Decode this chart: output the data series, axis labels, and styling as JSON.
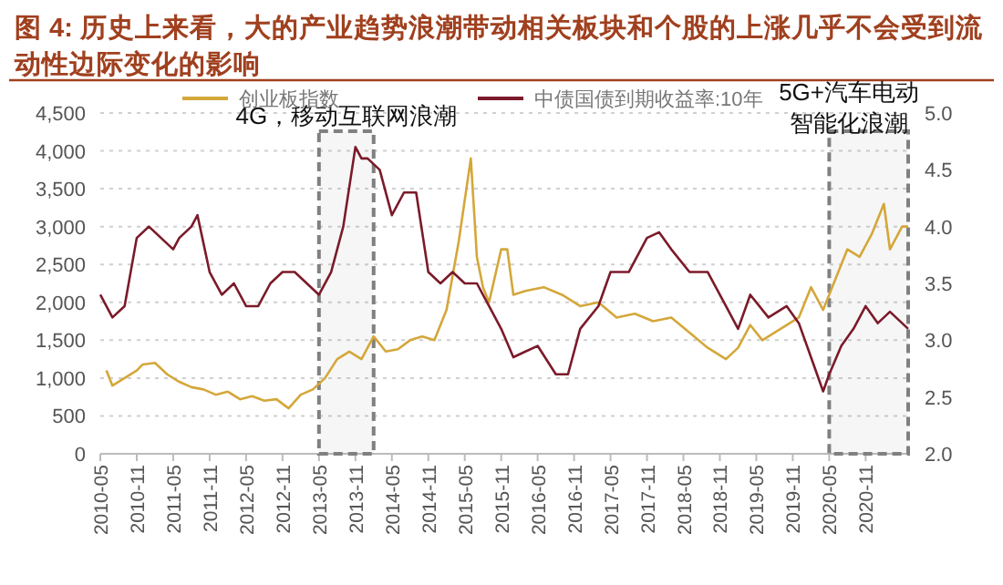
{
  "chart_data": {
    "type": "line",
    "title": "图 4: 历史上来看，大的产业趋势浪潮带动相关板块和个股的上涨几乎不会受到流动性边际变化的影响",
    "xlim": [
      "2010-05",
      "2021-06"
    ],
    "xticks": [
      "2010-05",
      "2010-11",
      "2011-05",
      "2011-11",
      "2012-05",
      "2012-11",
      "2013-05",
      "2013-11",
      "2014-05",
      "2014-11",
      "2015-05",
      "2015-11",
      "2016-05",
      "2016-11",
      "2017-05",
      "2017-11",
      "2018-05",
      "2018-11",
      "2019-05",
      "2019-11",
      "2020-05",
      "2020-11"
    ],
    "ylim": [
      0,
      4500
    ],
    "yticks": [
      {
        "value": 0,
        "label": "0"
      },
      {
        "value": 500,
        "label": "500"
      },
      {
        "value": 1000,
        "label": "1,000"
      },
      {
        "value": 1500,
        "label": "1,500"
      },
      {
        "value": 2000,
        "label": "2,000"
      },
      {
        "value": 2500,
        "label": "2,500"
      },
      {
        "value": 3000,
        "label": "3,000"
      },
      {
        "value": 3500,
        "label": "3,500"
      },
      {
        "value": 4000,
        "label": "4,000"
      },
      {
        "value": 4500,
        "label": "4,500"
      }
    ],
    "y2lim": [
      2,
      5
    ],
    "y2ticks": [
      {
        "value": 2,
        "label": "2.0"
      },
      {
        "value": 2.5,
        "label": "2.5"
      },
      {
        "value": 3,
        "label": "3.0"
      },
      {
        "value": 3.5,
        "label": "3.5"
      },
      {
        "value": 4,
        "label": "4.0"
      },
      {
        "value": 4.5,
        "label": "4.5"
      },
      {
        "value": 5,
        "label": "5.0"
      }
    ],
    "grid": "y",
    "legend": "top",
    "marker": "none",
    "line_style": "solid",
    "series": [
      {
        "name": "创业板指数",
        "color": "#d4a73a",
        "x": [
          "2010-06",
          "2010-07",
          "2010-09",
          "2010-11",
          "2010-12",
          "2011-02",
          "2011-04",
          "2011-06",
          "2011-08",
          "2011-10",
          "2011-12",
          "2012-02",
          "2012-04",
          "2012-06",
          "2012-08",
          "2012-10",
          "2012-12",
          "2013-02",
          "2013-04",
          "2013-06",
          "2013-08",
          "2013-10",
          "2013-12",
          "2014-02",
          "2014-04",
          "2014-06",
          "2014-08",
          "2014-10",
          "2014-12",
          "2015-02",
          "2015-04",
          "2015-06",
          "2015-07",
          "2015-08",
          "2015-09",
          "2015-11",
          "2015-12",
          "2016-01",
          "2016-03",
          "2016-06",
          "2016-09",
          "2016-12",
          "2017-03",
          "2017-06",
          "2017-09",
          "2017-12",
          "2018-03",
          "2018-06",
          "2018-09",
          "2018-12",
          "2019-02",
          "2019-04",
          "2019-06",
          "2019-09",
          "2019-12",
          "2020-02",
          "2020-04",
          "2020-06",
          "2020-08",
          "2020-10",
          "2020-12",
          "2021-02",
          "2021-03",
          "2021-05",
          "2021-06"
        ],
        "values": [
          1100,
          900,
          1000,
          1100,
          1180,
          1200,
          1050,
          950,
          880,
          850,
          780,
          820,
          720,
          760,
          700,
          720,
          600,
          780,
          850,
          1000,
          1250,
          1350,
          1250,
          1550,
          1350,
          1380,
          1500,
          1550,
          1500,
          1900,
          2800,
          3900,
          2600,
          2200,
          2000,
          2700,
          2700,
          2100,
          2150,
          2200,
          2100,
          1950,
          2000,
          1800,
          1850,
          1750,
          1800,
          1600,
          1400,
          1250,
          1400,
          1700,
          1500,
          1650,
          1800,
          2200,
          1900,
          2300,
          2700,
          2600,
          2900,
          3300,
          2700,
          3000,
          3000
        ]
      },
      {
        "name": "中债国债到期收益率:10年",
        "color": "#7b1a2a",
        "axis": "y2",
        "x": [
          "2010-05",
          "2010-07",
          "2010-09",
          "2010-11",
          "2011-01",
          "2011-03",
          "2011-05",
          "2011-06",
          "2011-08",
          "2011-09",
          "2011-11",
          "2012-01",
          "2012-03",
          "2012-05",
          "2012-07",
          "2012-09",
          "2012-11",
          "2013-01",
          "2013-03",
          "2013-05",
          "2013-07",
          "2013-09",
          "2013-11",
          "2013-12",
          "2014-01",
          "2014-03",
          "2014-05",
          "2014-07",
          "2014-09",
          "2014-11",
          "2015-01",
          "2015-03",
          "2015-05",
          "2015-07",
          "2015-09",
          "2015-11",
          "2016-01",
          "2016-03",
          "2016-05",
          "2016-08",
          "2016-10",
          "2016-12",
          "2017-03",
          "2017-05",
          "2017-08",
          "2017-11",
          "2018-01",
          "2018-03",
          "2018-06",
          "2018-09",
          "2018-12",
          "2019-02",
          "2019-04",
          "2019-07",
          "2019-10",
          "2019-12",
          "2020-02",
          "2020-04",
          "2020-05",
          "2020-07",
          "2020-09",
          "2020-11",
          "2021-01",
          "2021-03",
          "2021-06"
        ],
        "values": [
          3.4,
          3.2,
          3.3,
          3.9,
          4.0,
          3.9,
          3.8,
          3.9,
          4.0,
          4.1,
          3.6,
          3.4,
          3.5,
          3.3,
          3.3,
          3.5,
          3.6,
          3.6,
          3.5,
          3.4,
          3.6,
          4.0,
          4.7,
          4.6,
          4.6,
          4.5,
          4.1,
          4.3,
          4.3,
          3.6,
          3.5,
          3.6,
          3.5,
          3.5,
          3.3,
          3.1,
          2.85,
          2.9,
          2.95,
          2.7,
          2.7,
          3.1,
          3.3,
          3.6,
          3.6,
          3.9,
          3.95,
          3.8,
          3.6,
          3.6,
          3.3,
          3.1,
          3.4,
          3.2,
          3.3,
          3.15,
          2.85,
          2.55,
          2.7,
          2.95,
          3.1,
          3.3,
          3.15,
          3.25,
          3.1
        ]
      }
    ],
    "bands": [
      {
        "axis": "x",
        "from": "2013-05",
        "to": "2014-02",
        "label": "4G，移动互联网浪潮",
        "color": "#808080"
      },
      {
        "axis": "x",
        "from": "2020-05",
        "to": "2021-06",
        "label": "5G+汽车电动智能化浪潮",
        "color": "#808080"
      }
    ]
  }
}
